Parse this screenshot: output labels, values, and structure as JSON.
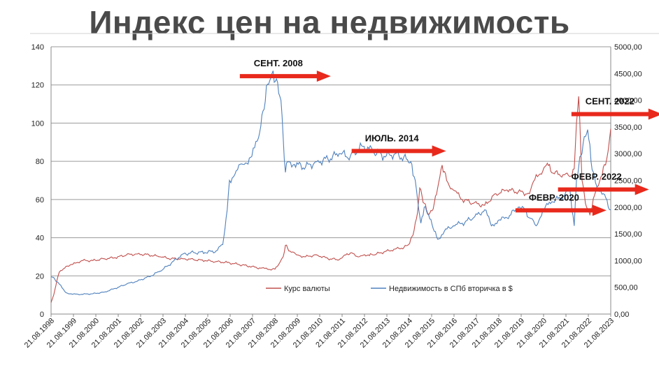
{
  "title": "Индекс цен на недвижимость",
  "chart_data": {
    "type": "line",
    "title": "Индекс цен на недвижимость",
    "x_ticks": [
      "21.08.1998",
      "21.08.1999",
      "21.08.2000",
      "21.08.2001",
      "21.08.2002",
      "21.08.2003",
      "21.08.2004",
      "21.08.2005",
      "21.08.2006",
      "21.08.2007",
      "21.08.2008",
      "21.08.2009",
      "21.08.2010",
      "21.08.2011",
      "21.08.2012",
      "21.08.2013",
      "21.08.2014",
      "21.08.2015",
      "21.08.2016",
      "21.08.2017",
      "21.08.2018",
      "21.08.2019",
      "21.08.2020",
      "21.08.2021",
      "21.08.2022",
      "21.08.2023"
    ],
    "y_left": {
      "min": 0,
      "max": 140,
      "ticks": [
        "0",
        "20",
        "40",
        "60",
        "80",
        "100",
        "120",
        "140"
      ]
    },
    "y_right": {
      "min": 0,
      "max": 5000,
      "ticks": [
        "0,00",
        "500,00",
        "1000,00",
        "1500,00",
        "2000,00",
        "2500,00",
        "3000,00",
        "3500,00",
        "4000,00",
        "4500,00",
        "5000,00"
      ]
    },
    "grid": true,
    "legend_position": "bottom-center",
    "series": [
      {
        "name": "Курс валюты",
        "axis": "left",
        "color": "#c0504d",
        "points": [
          [
            1998.63,
            6
          ],
          [
            1998.75,
            10
          ],
          [
            1998.9,
            18
          ],
          [
            1999.0,
            22
          ],
          [
            1999.3,
            25
          ],
          [
            1999.6,
            26
          ],
          [
            2000.0,
            28
          ],
          [
            2000.5,
            28
          ],
          [
            2001.0,
            29
          ],
          [
            2001.5,
            29.5
          ],
          [
            2002.0,
            31
          ],
          [
            2002.5,
            31.5
          ],
          [
            2003.0,
            31
          ],
          [
            2003.5,
            30
          ],
          [
            2004.0,
            29
          ],
          [
            2004.5,
            29
          ],
          [
            2005.0,
            28.5
          ],
          [
            2005.5,
            28
          ],
          [
            2006.0,
            27.5
          ],
          [
            2006.5,
            27
          ],
          [
            2007.0,
            26
          ],
          [
            2007.5,
            25
          ],
          [
            2008.0,
            24
          ],
          [
            2008.3,
            23.5
          ],
          [
            2008.63,
            23.5
          ],
          [
            2008.8,
            26
          ],
          [
            2009.0,
            30
          ],
          [
            2009.1,
            36
          ],
          [
            2009.3,
            33
          ],
          [
            2009.6,
            31
          ],
          [
            2010.0,
            30
          ],
          [
            2010.5,
            31
          ],
          [
            2011.0,
            29
          ],
          [
            2011.5,
            28.5
          ],
          [
            2011.8,
            31
          ],
          [
            2012.0,
            32
          ],
          [
            2012.4,
            30
          ],
          [
            2012.8,
            31
          ],
          [
            2013.0,
            31
          ],
          [
            2013.5,
            32.5
          ],
          [
            2014.0,
            34
          ],
          [
            2014.4,
            35
          ],
          [
            2014.65,
            37
          ],
          [
            2014.85,
            44
          ],
          [
            2015.0,
            53
          ],
          [
            2015.1,
            66
          ],
          [
            2015.3,
            58
          ],
          [
            2015.5,
            52
          ],
          [
            2015.7,
            55
          ],
          [
            2015.9,
            66
          ],
          [
            2016.0,
            72
          ],
          [
            2016.1,
            78
          ],
          [
            2016.3,
            70
          ],
          [
            2016.6,
            65
          ],
          [
            2017.0,
            60
          ],
          [
            2017.5,
            58
          ],
          [
            2018.0,
            57
          ],
          [
            2018.5,
            63
          ],
          [
            2019.0,
            65
          ],
          [
            2019.5,
            64
          ],
          [
            2020.0,
            63
          ],
          [
            2020.3,
            73
          ],
          [
            2020.6,
            75
          ],
          [
            2020.8,
            79
          ],
          [
            2021.0,
            74
          ],
          [
            2021.5,
            73
          ],
          [
            2021.8,
            72
          ],
          [
            2022.0,
            76
          ],
          [
            2022.1,
            100
          ],
          [
            2022.2,
            114
          ],
          [
            2022.35,
            70
          ],
          [
            2022.5,
            58
          ],
          [
            2022.7,
            52
          ],
          [
            2022.9,
            62
          ],
          [
            2023.2,
            72
          ],
          [
            2023.45,
            81
          ],
          [
            2023.63,
            97
          ]
        ]
      },
      {
        "name": "Недвижимость в СПб вторичка в $",
        "axis": "right",
        "color": "#4f81bd",
        "points": [
          [
            1998.63,
            700
          ],
          [
            1998.8,
            650
          ],
          [
            1999.0,
            560
          ],
          [
            1999.3,
            400
          ],
          [
            1999.6,
            370
          ],
          [
            2000.0,
            370
          ],
          [
            2000.5,
            380
          ],
          [
            2001.0,
            410
          ],
          [
            2001.5,
            480
          ],
          [
            2002.0,
            560
          ],
          [
            2002.5,
            620
          ],
          [
            2003.0,
            700
          ],
          [
            2003.5,
            800
          ],
          [
            2004.0,
            950
          ],
          [
            2004.5,
            1120
          ],
          [
            2005.0,
            1150
          ],
          [
            2005.5,
            1150
          ],
          [
            2006.0,
            1180
          ],
          [
            2006.3,
            1300
          ],
          [
            2006.5,
            1950
          ],
          [
            2006.6,
            2500
          ],
          [
            2006.9,
            2680
          ],
          [
            2007.2,
            2800
          ],
          [
            2007.6,
            2950
          ],
          [
            2007.9,
            3300
          ],
          [
            2008.1,
            3800
          ],
          [
            2008.3,
            4300
          ],
          [
            2008.5,
            4500
          ],
          [
            2008.7,
            4400
          ],
          [
            2008.9,
            4000
          ],
          [
            2009.0,
            3300
          ],
          [
            2009.1,
            2650
          ],
          [
            2009.2,
            2850
          ],
          [
            2009.5,
            2800
          ],
          [
            2010.0,
            2750
          ],
          [
            2010.5,
            2850
          ],
          [
            2011.0,
            2900
          ],
          [
            2011.5,
            3000
          ],
          [
            2012.0,
            2950
          ],
          [
            2012.5,
            3150
          ],
          [
            2013.0,
            3050
          ],
          [
            2013.5,
            2950
          ],
          [
            2014.0,
            3000
          ],
          [
            2014.5,
            2900
          ],
          [
            2014.7,
            2850
          ],
          [
            2014.9,
            2500
          ],
          [
            2015.0,
            2150
          ],
          [
            2015.15,
            1700
          ],
          [
            2015.3,
            2000
          ],
          [
            2015.5,
            1850
          ],
          [
            2015.7,
            1600
          ],
          [
            2015.9,
            1400
          ],
          [
            2016.2,
            1550
          ],
          [
            2016.6,
            1650
          ],
          [
            2017.0,
            1700
          ],
          [
            2017.5,
            1800
          ],
          [
            2018.0,
            1950
          ],
          [
            2018.3,
            1650
          ],
          [
            2018.6,
            1750
          ],
          [
            2019.0,
            1800
          ],
          [
            2019.5,
            2000
          ],
          [
            2019.8,
            1950
          ],
          [
            2020.0,
            1800
          ],
          [
            2020.3,
            1650
          ],
          [
            2020.6,
            1950
          ],
          [
            2021.0,
            2100
          ],
          [
            2021.5,
            2200
          ],
          [
            2021.8,
            2350
          ],
          [
            2022.0,
            1650
          ],
          [
            2022.1,
            2500
          ],
          [
            2022.2,
            2750
          ],
          [
            2022.4,
            3200
          ],
          [
            2022.6,
            3450
          ],
          [
            2022.8,
            2700
          ],
          [
            2023.0,
            2400
          ],
          [
            2023.3,
            2250
          ],
          [
            2023.63,
            1950
          ]
        ]
      }
    ],
    "annotations": [
      {
        "text": "СЕНТ. 2008",
        "year": 2008.0,
        "value": 4450
      },
      {
        "text": "ИЮЛЬ. 2014",
        "year": 2014.4,
        "value": 3050
      },
      {
        "text": "ФЕВР. 2020",
        "year": 2020.0,
        "value": 1940
      },
      {
        "text": "ФЕВР. 2022",
        "year": 2021.9,
        "value": 2330
      },
      {
        "text": "СЕНТ. 2022",
        "year": 2022.5,
        "value": 3740
      }
    ],
    "arrow_color": "#e8291c"
  }
}
